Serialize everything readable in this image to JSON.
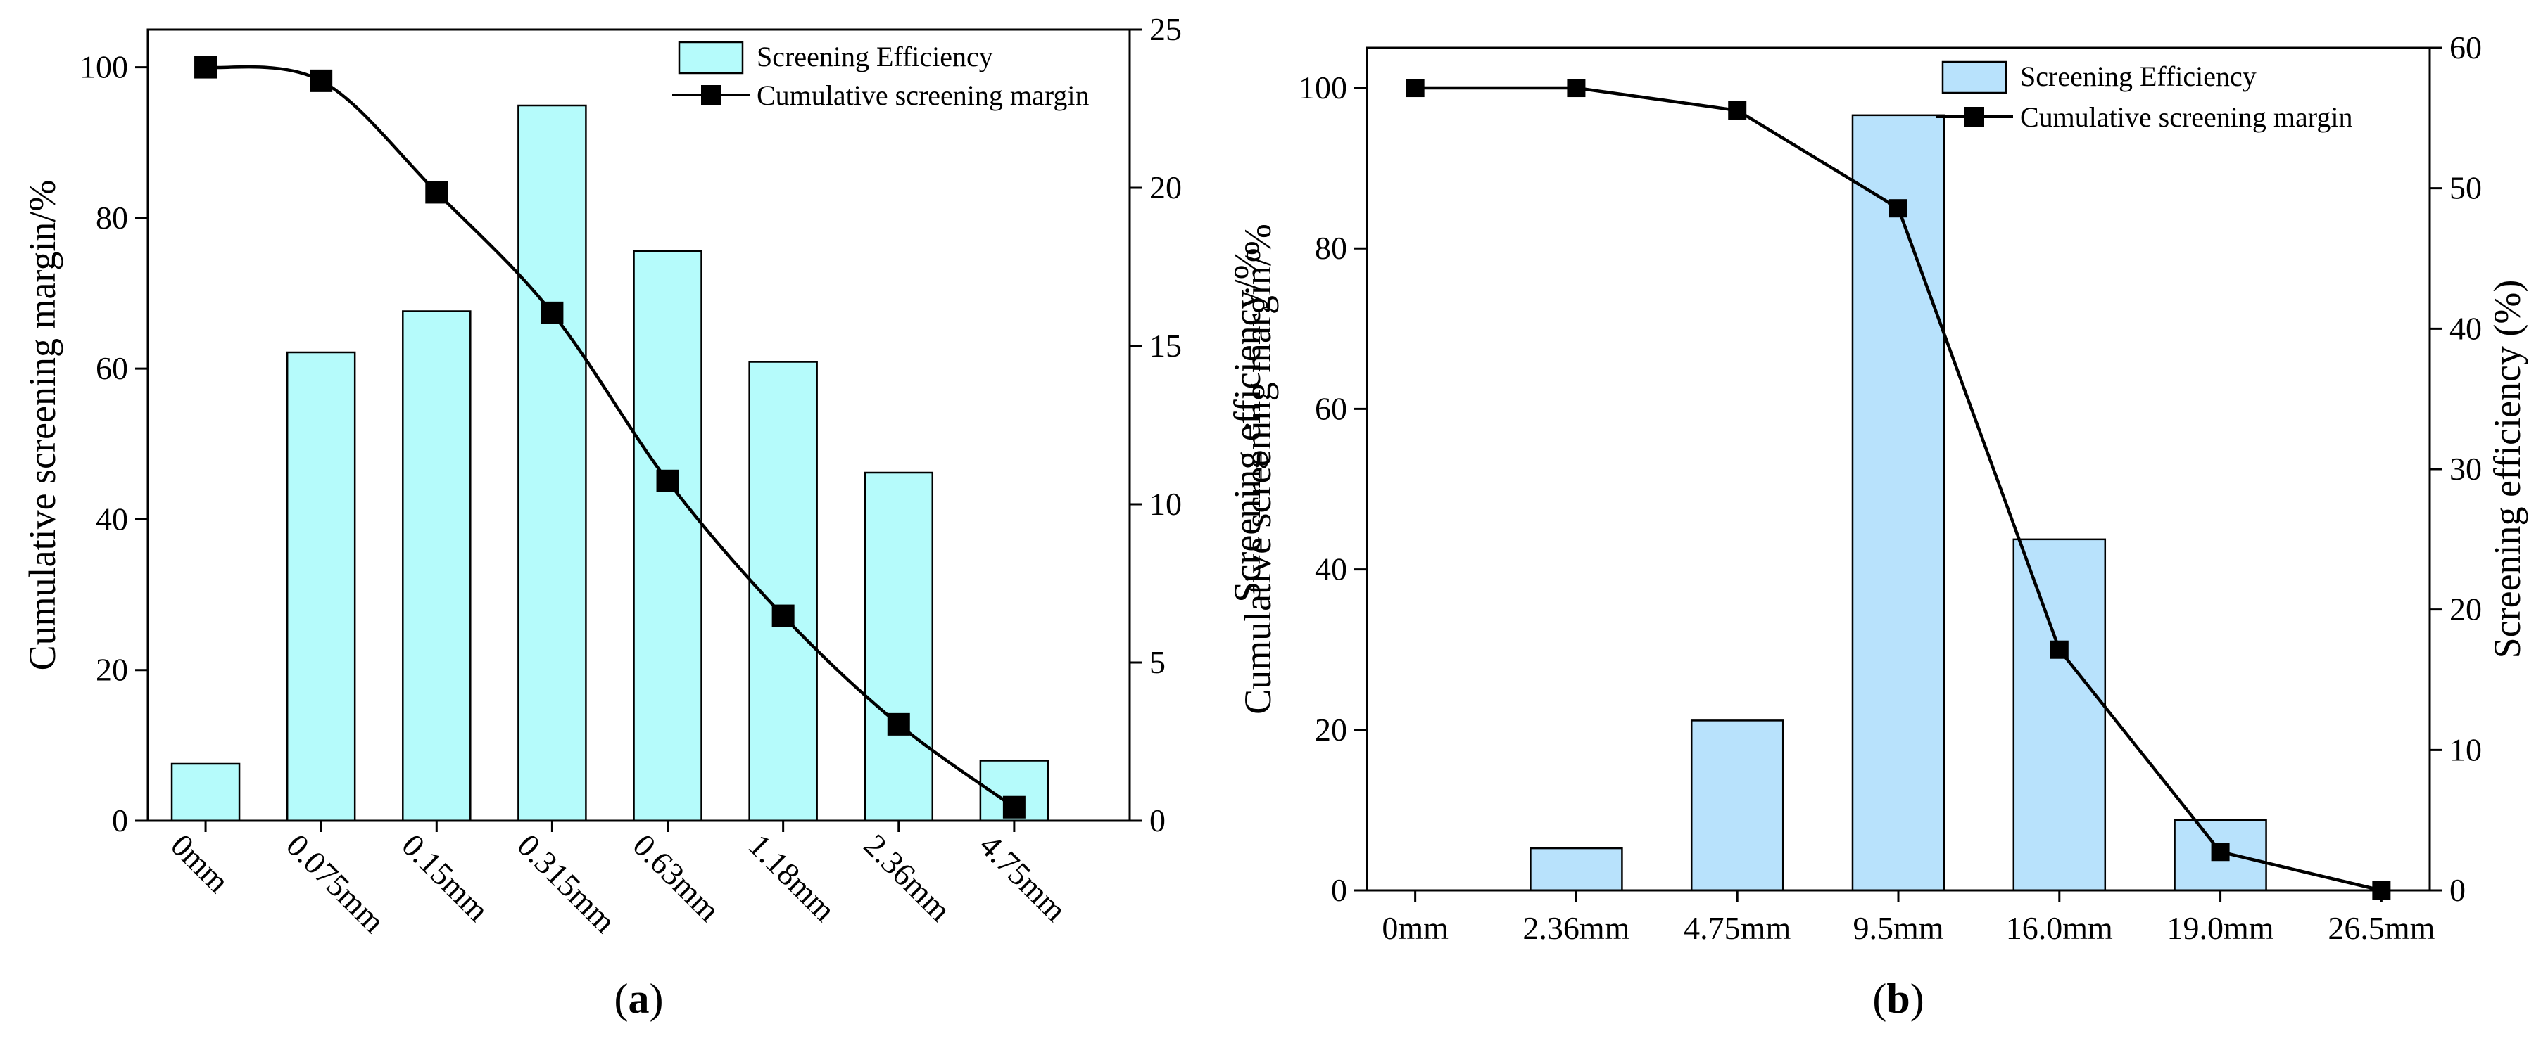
{
  "chart_data": [
    {
      "type": "bar+line",
      "panel_label": "a",
      "categories": [
        "0mm",
        "0.075mm",
        "0.15mm",
        "0.315mm",
        "0.63mm",
        "1.18mm",
        "2.36mm",
        "4.75mm"
      ],
      "series": [
        {
          "name": "Screening Efficiency",
          "type": "bar",
          "axis": "right",
          "values": [
            1.8,
            14.8,
            16.1,
            22.6,
            18.0,
            14.5,
            11.0,
            1.9
          ]
        },
        {
          "name": "Cumulative screening margin",
          "type": "line",
          "axis": "left",
          "marker": "square",
          "smooth": true,
          "values": [
            100,
            98.2,
            83.4,
            67.4,
            45.1,
            27.2,
            12.8,
            1.8
          ]
        }
      ],
      "ylabel": "Cumulative screening margin/%",
      "ylim": [
        0,
        105
      ],
      "yticks": [
        0,
        20,
        40,
        60,
        80,
        100
      ],
      "y2label": "Screening efficiency/%",
      "y2lim": [
        0,
        25
      ],
      "y2ticks": [
        0,
        5,
        10,
        15,
        20,
        25
      ],
      "xtick_rotation": 45,
      "legend_position": "top-right",
      "colors": {
        "bar_fill": "#b5fbfb",
        "bar_edge": "#000000",
        "line": "#000000"
      }
    },
    {
      "type": "bar+line",
      "panel_label": "b",
      "categories": [
        "0mm",
        "2.36mm",
        "4.75mm",
        "9.5mm",
        "16.0mm",
        "19.0mm",
        "26.5mm"
      ],
      "series": [
        {
          "name": "Screening Efficiency",
          "type": "bar",
          "axis": "right",
          "values": [
            0,
            3.0,
            12.1,
            55.2,
            25.0,
            5.0,
            0
          ]
        },
        {
          "name": "Cumulative screening margin",
          "type": "line",
          "axis": "left",
          "marker": "square",
          "smooth": false,
          "values": [
            100,
            100,
            97.2,
            85.0,
            30.0,
            4.8,
            0
          ]
        }
      ],
      "ylabel": "Cumulative screening margin/%",
      "ylim": [
        0,
        105
      ],
      "yticks": [
        0,
        20,
        40,
        60,
        80,
        100
      ],
      "y2label": "Screening efficiency (%)",
      "y2lim": [
        0,
        60
      ],
      "y2ticks": [
        0,
        10,
        20,
        30,
        40,
        50,
        60
      ],
      "xtick_rotation": 0,
      "legend_position": "top-right",
      "colors": {
        "bar_fill": "#b8e2fc",
        "bar_edge": "#000000",
        "line": "#000000"
      }
    }
  ]
}
